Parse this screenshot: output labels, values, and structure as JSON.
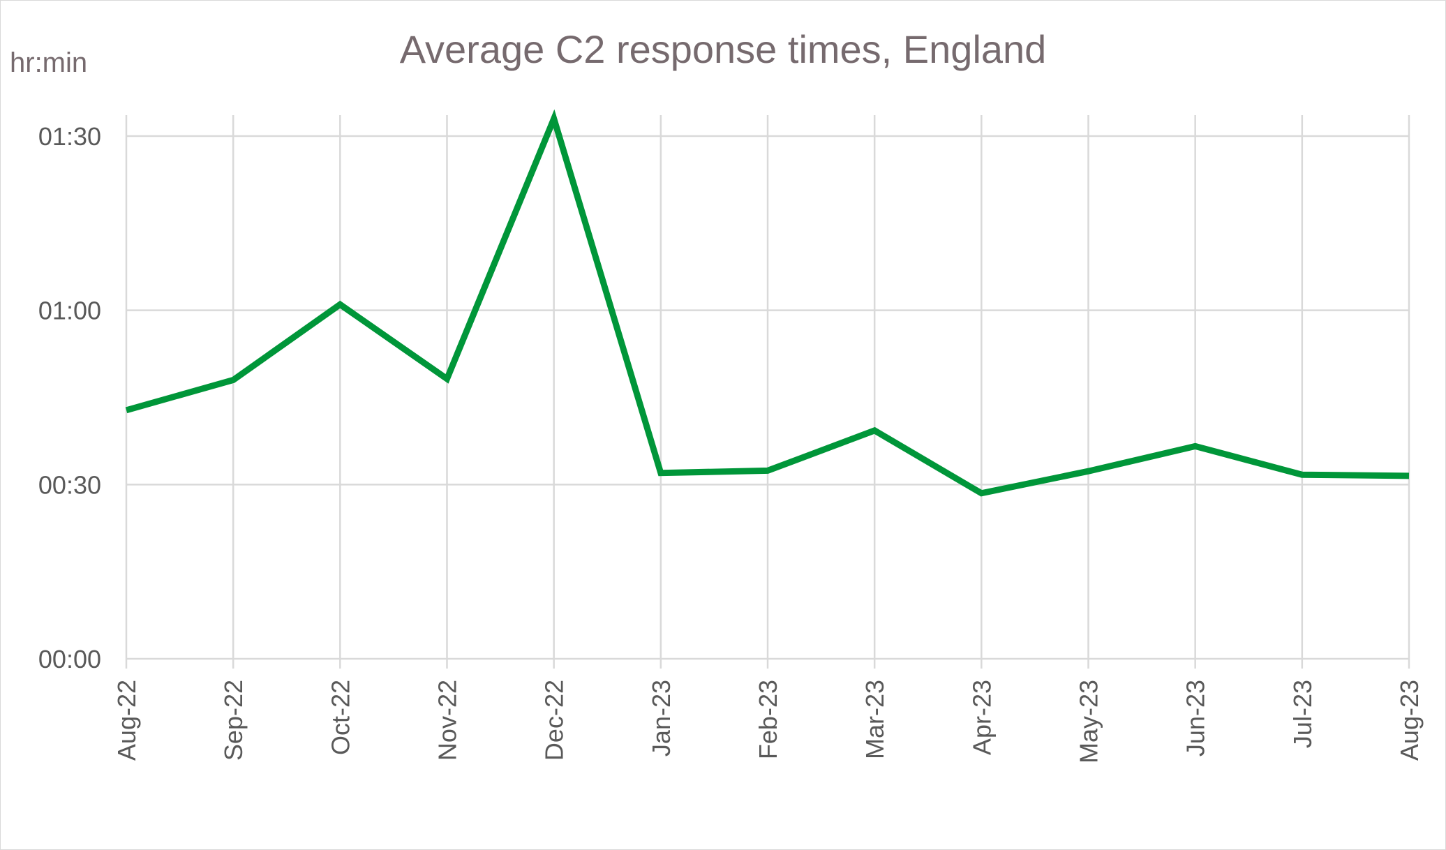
{
  "chart_data": {
    "type": "line",
    "title": "Average C2 response times, England",
    "ylabel": "hr:min",
    "xlabel": "",
    "categories": [
      "Aug-22",
      "Sep-22",
      "Oct-22",
      "Nov-22",
      "Dec-22",
      "Jan-23",
      "Feb-23",
      "Mar-23",
      "Apr-23",
      "May-23",
      "Jun-23",
      "Jul-23",
      "Aug-23"
    ],
    "series": [
      {
        "values": [
          42.8,
          48.0,
          61.0,
          48.2,
          93.0,
          32.0,
          32.4,
          39.3,
          28.5,
          32.3,
          36.6,
          31.7,
          31.5
        ],
        "color": "#009639"
      }
    ],
    "yunit": "minutes",
    "ylim": [
      0,
      90
    ],
    "yticks": [
      0,
      30,
      60,
      90
    ],
    "ytick_labels": [
      "00:00",
      "00:30",
      "01:00",
      "01:30"
    ],
    "grid": true,
    "legend": "none"
  }
}
